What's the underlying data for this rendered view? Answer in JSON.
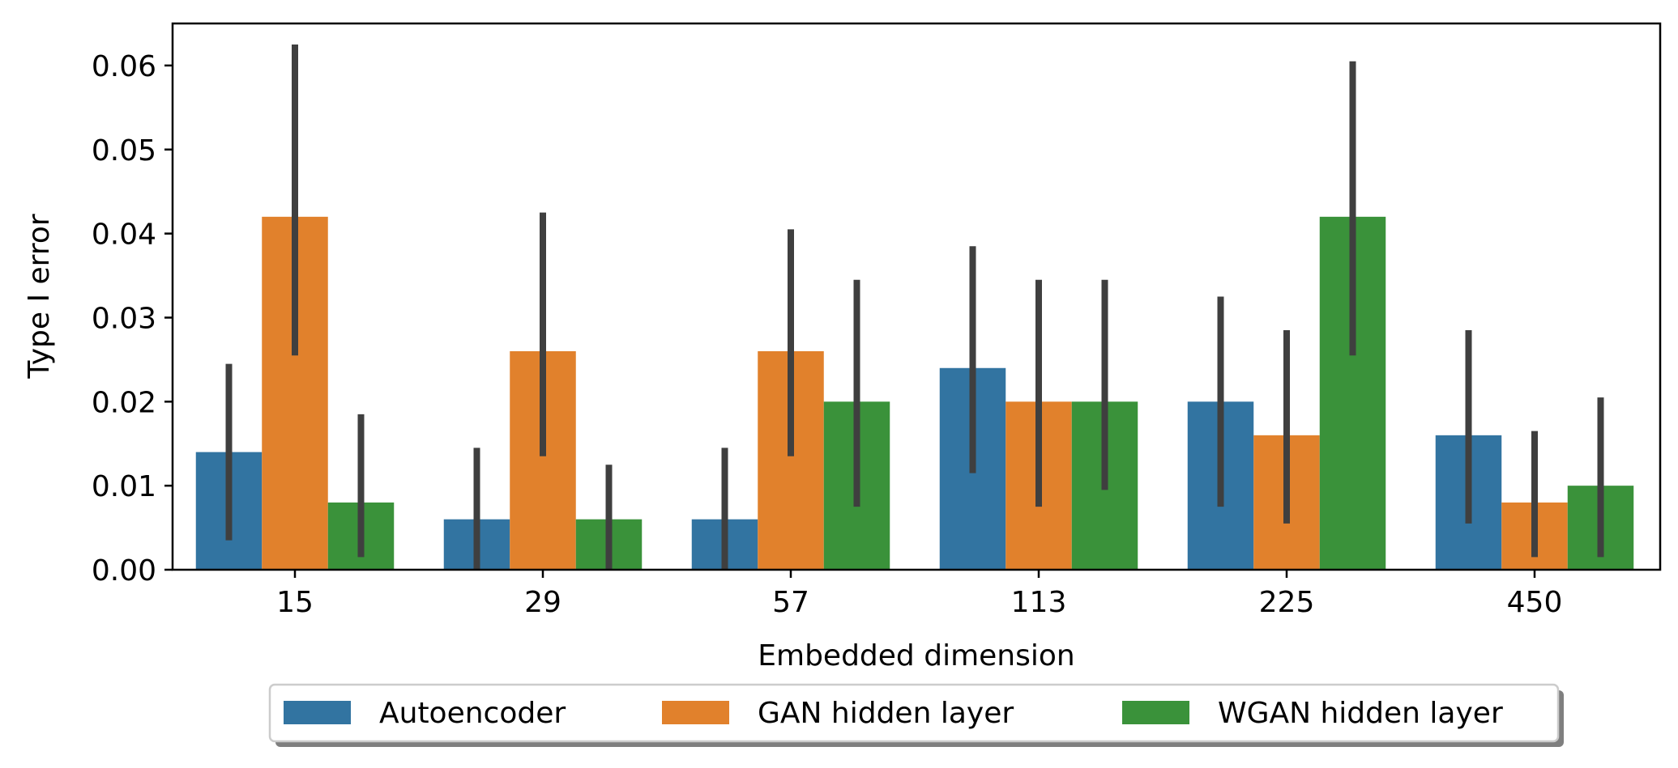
{
  "chart_data": {
    "type": "bar",
    "title": "",
    "xlabel": "Embedded dimension",
    "ylabel": "Type I error",
    "categories": [
      "15",
      "29",
      "57",
      "113",
      "225",
      "450"
    ],
    "ylim": [
      0,
      0.065
    ],
    "yticks": [
      0.0,
      0.01,
      0.02,
      0.03,
      0.04,
      0.05,
      0.06
    ],
    "ytick_labels": [
      "0.00",
      "0.01",
      "0.02",
      "0.03",
      "0.04",
      "0.05",
      "0.06"
    ],
    "grid": false,
    "legend_position": "bottom-center",
    "series": [
      {
        "name": "Autoencoder",
        "color": "#3274a1",
        "values": [
          0.014,
          0.006,
          0.006,
          0.024,
          0.02,
          0.016
        ],
        "err_low": [
          0.0035,
          0.0,
          0.0,
          0.0115,
          0.0075,
          0.0055
        ],
        "err_high": [
          0.0245,
          0.0145,
          0.0145,
          0.0385,
          0.0325,
          0.0285
        ]
      },
      {
        "name": "GAN hidden layer",
        "color": "#e1812c",
        "values": [
          0.042,
          0.026,
          0.026,
          0.02,
          0.016,
          0.008
        ],
        "err_low": [
          0.0255,
          0.0135,
          0.0135,
          0.0075,
          0.0055,
          0.0015
        ],
        "err_high": [
          0.0625,
          0.0425,
          0.0405,
          0.0345,
          0.0285,
          0.0165
        ]
      },
      {
        "name": "WGAN hidden layer",
        "color": "#3a923a",
        "values": [
          0.008,
          0.006,
          0.02,
          0.02,
          0.042,
          0.01
        ],
        "err_low": [
          0.0015,
          0.0,
          0.0075,
          0.0095,
          0.0255,
          0.0015
        ],
        "err_high": [
          0.0185,
          0.0125,
          0.0345,
          0.0345,
          0.0605,
          0.0205
        ]
      }
    ],
    "errorbar_color": "#3f3f3f"
  }
}
